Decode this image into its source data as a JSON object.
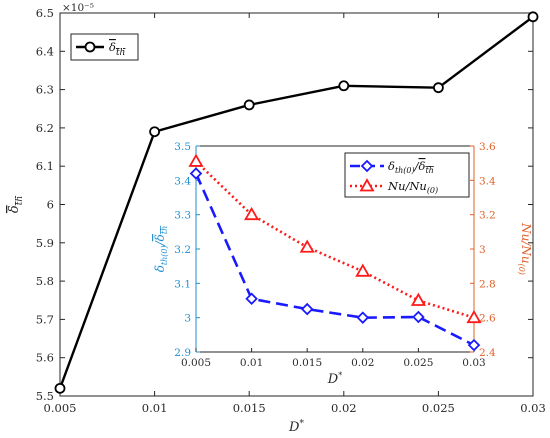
{
  "chart_data": [
    {
      "type": "line",
      "x": [
        0.005,
        0.01,
        0.015,
        0.02,
        0.025,
        0.03
      ],
      "series": [
        {
          "name": "δ̄_th",
          "values": [
            5.52,
            6.19,
            6.26,
            6.31,
            6.305,
            6.49
          ],
          "color": "#000000",
          "marker": "circle",
          "linestyle": "solid"
        }
      ],
      "xlabel": "D*",
      "ylabel": "δ̄_th",
      "y_exponent": "×10⁻⁵",
      "xlim": [
        0.005,
        0.03
      ],
      "ylim": [
        5.5,
        6.5
      ],
      "x_ticks": [
        "0.005",
        "0.01",
        "0.015",
        "0.02",
        "0.025",
        "0.03"
      ],
      "y_ticks": [
        "5.5",
        "5.6",
        "5.7",
        "5.8",
        "5.9",
        "6",
        "6.1",
        "6.2",
        "6.3",
        "6.4",
        "6.5"
      ],
      "legend_position": "top-left",
      "grid": false
    },
    {
      "type": "line",
      "x": [
        0.005,
        0.01,
        0.015,
        0.02,
        0.025,
        0.03
      ],
      "series": [
        {
          "name": "δ_th(0)/δ̄_th",
          "axis": "left",
          "values": [
            3.42,
            3.055,
            3.025,
            3.0,
            3.002,
            2.92
          ],
          "color": "#1a1aff",
          "marker": "diamond",
          "linestyle": "dashed"
        },
        {
          "name": "Nu/Nu(0)",
          "axis": "right",
          "values": [
            3.51,
            3.2,
            3.01,
            2.87,
            2.7,
            2.6
          ],
          "color": "#ff1a1a",
          "marker": "triangle",
          "linestyle": "dotted"
        }
      ],
      "xlabel": "D*",
      "ylabel_left": "δ_th(0)/δ̄_th",
      "ylabel_right": "Nu/Nu(0)",
      "xlim": [
        0.005,
        0.03
      ],
      "ylim_left": [
        2.9,
        3.5
      ],
      "ylim_right": [
        2.4,
        3.6
      ],
      "x_ticks": [
        "0.005",
        "0.01",
        "0.015",
        "0.02",
        "0.025",
        "0.03"
      ],
      "y_ticks_left": [
        "2.9",
        "3",
        "3.1",
        "3.2",
        "3.3",
        "3.4",
        "3.5"
      ],
      "y_ticks_right": [
        "2.4",
        "2.6",
        "2.8",
        "3",
        "3.2",
        "3.4",
        "3.6"
      ],
      "left_axis_color": "#1f8fd0",
      "right_axis_color": "#e0602a",
      "legend_position": "top-right",
      "grid": false
    }
  ]
}
